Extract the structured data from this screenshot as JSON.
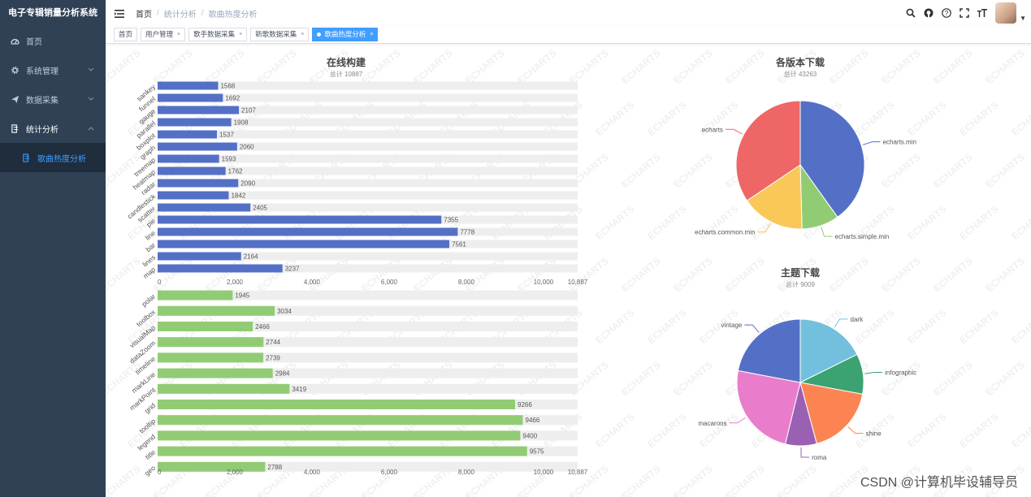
{
  "app": {
    "title": "电子专辑销量分析系统"
  },
  "sidebar": {
    "items": [
      {
        "label": "首页",
        "icon": "dashboard-icon"
      },
      {
        "label": "系统管理",
        "icon": "gear-icon"
      },
      {
        "label": "数据采集",
        "icon": "paper-plane-icon"
      },
      {
        "label": "统计分析",
        "icon": "chart-icon"
      }
    ],
    "sub_items": [
      {
        "label": "歌曲热度分析",
        "icon": "chart-icon"
      }
    ]
  },
  "breadcrumb": [
    "首页",
    "统计分析",
    "歌曲热度分析"
  ],
  "tags": [
    {
      "label": "首页",
      "closable": false,
      "active": false
    },
    {
      "label": "用户管理",
      "closable": true,
      "active": false
    },
    {
      "label": "歌手数据采集",
      "closable": true,
      "active": false
    },
    {
      "label": "新歌数据采集",
      "closable": true,
      "active": false
    },
    {
      "label": "歌曲热度分析",
      "closable": true,
      "active": true
    }
  ],
  "watermark_text": "ECHARTS",
  "footer_text": "CSDN @计算机毕设辅导员",
  "chart_data": [
    {
      "type": "bar",
      "orientation": "horizontal",
      "title": "在线构建",
      "subtitle": "总计 10887",
      "xlim": [
        0,
        10887
      ],
      "x_ticks": [
        "0",
        "2,000",
        "4,000",
        "6,000",
        "8,000",
        "10,000",
        "10,887"
      ],
      "color": "#5470c6",
      "categories": [
        "sankey",
        "funnel",
        "gauge",
        "parallel",
        "boxplot",
        "graph",
        "treemap",
        "heatmap",
        "radar",
        "candlestick",
        "scatter",
        "pie",
        "line",
        "bar",
        "lines",
        "map"
      ],
      "values": [
        1568,
        1692,
        2107,
        1908,
        1537,
        2060,
        1593,
        1762,
        2090,
        1842,
        2405,
        7355,
        7778,
        7561,
        2164,
        3237
      ]
    },
    {
      "type": "bar",
      "orientation": "horizontal",
      "xlim": [
        0,
        10887
      ],
      "x_ticks": [
        "0",
        "2,000",
        "4,000",
        "6,000",
        "8,000",
        "10,000",
        "10,887"
      ],
      "color": "#91cc75",
      "categories": [
        "polar",
        "toolbox",
        "visualMap",
        "dataZoom",
        "timeline",
        "markLine",
        "markPoint",
        "grid",
        "tooltip",
        "legend",
        "title",
        "geo"
      ],
      "values": [
        1945,
        3034,
        2466,
        2744,
        2739,
        2984,
        3419,
        9266,
        9466,
        9400,
        9575,
        2788
      ]
    },
    {
      "type": "pie",
      "title": "各版本下载",
      "subtitle": "总计 43263",
      "slices": [
        {
          "name": "echarts.min",
          "value": 17365,
          "color": "#5470c6"
        },
        {
          "name": "echarts.simple.min",
          "value": 4079,
          "color": "#91cc75"
        },
        {
          "name": "echarts.common.min",
          "value": 6929,
          "color": "#fac858"
        },
        {
          "name": "echarts",
          "value": 14890,
          "color": "#ee6666"
        }
      ]
    },
    {
      "type": "pie",
      "title": "主题下载",
      "subtitle": "总计 9009",
      "slices": [
        {
          "name": "dark",
          "value": 1594,
          "color": "#73c0de"
        },
        {
          "name": "infographic",
          "value": 925,
          "color": "#3ba272"
        },
        {
          "name": "shine",
          "value": 1608,
          "color": "#fc8452"
        },
        {
          "name": "roma",
          "value": 721,
          "color": "#9a60b4"
        },
        {
          "name": "macarons",
          "value": 2179,
          "color": "#ea7ccc"
        },
        {
          "name": "vintage",
          "value": 1982,
          "color": "#5470c6"
        }
      ]
    }
  ]
}
